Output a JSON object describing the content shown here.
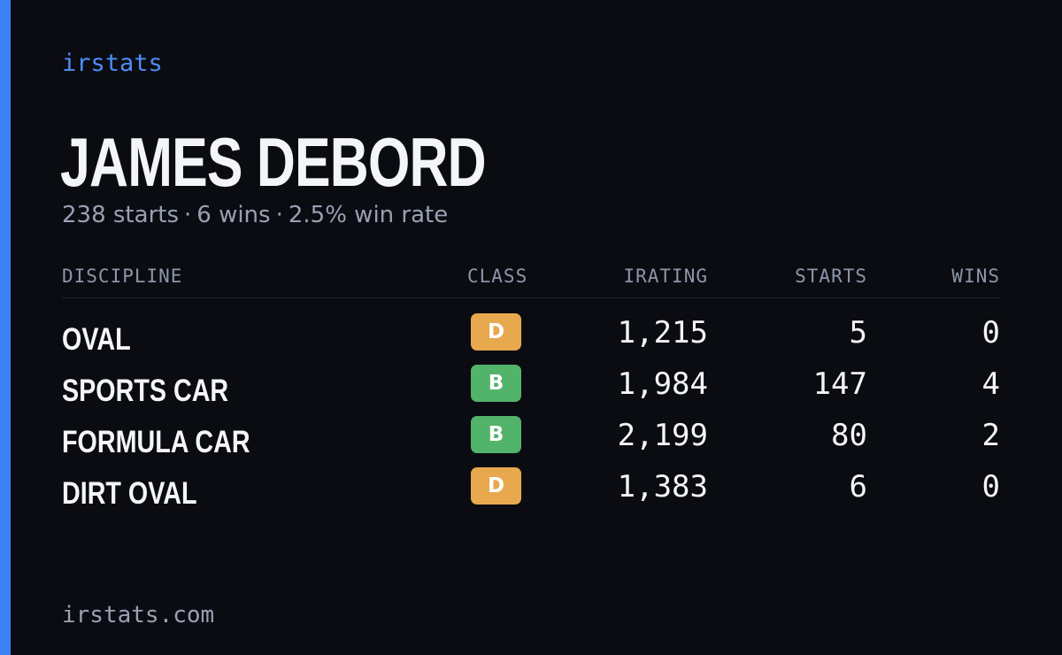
{
  "brand": "irstats",
  "driver": {
    "name": "JAMES DEBORD",
    "starts_text": "238 starts",
    "wins_text": "6 wins",
    "win_rate_text": "2.5% win rate",
    "separator": "·"
  },
  "table": {
    "headers": {
      "discipline": "DISCIPLINE",
      "class": "CLASS",
      "irating": "IRATING",
      "starts": "STARTS",
      "wins": "WINS"
    },
    "rows": [
      {
        "discipline": "OVAL",
        "class": "D",
        "irating": "1,215",
        "starts": "5",
        "wins": "0"
      },
      {
        "discipline": "SPORTS CAR",
        "class": "B",
        "irating": "1,984",
        "starts": "147",
        "wins": "4"
      },
      {
        "discipline": "FORMULA CAR",
        "class": "B",
        "irating": "2,199",
        "starts": "80",
        "wins": "2"
      },
      {
        "discipline": "DIRT OVAL",
        "class": "D",
        "irating": "1,383",
        "starts": "6",
        "wins": "0"
      }
    ]
  },
  "footer": "irstats.com",
  "colors": {
    "accent": "#3b82f6",
    "background": "#0a0c12",
    "class_d": "#e8a94e",
    "class_b": "#52b36a"
  }
}
